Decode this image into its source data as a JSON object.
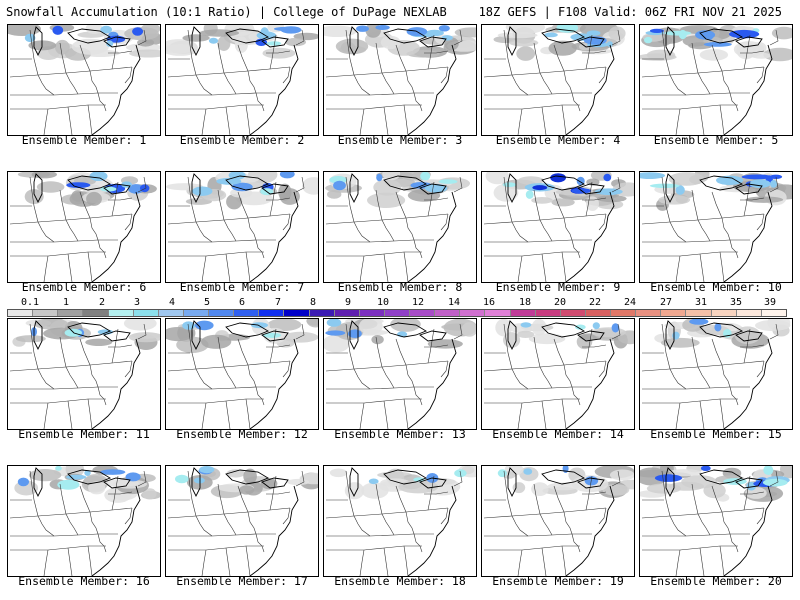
{
  "header": {
    "left": "Snowfall Accumulation (10:1 Ratio) | College of DuPage NEXLAB",
    "right": "18Z GEFS | F108 Valid: 06Z FRI NOV 21 2025"
  },
  "colorbar": {
    "labels": [
      "0.1",
      "1",
      "2",
      "3",
      "4",
      "5",
      "6",
      "7",
      "8",
      "9",
      "10",
      "12",
      "14",
      "16",
      "18",
      "20",
      "22",
      "24",
      "27",
      "31",
      "35",
      "39"
    ],
    "colors": [
      "#e8e8e8",
      "#c8c8c8",
      "#a0a0a0",
      "#808080",
      "#b4f0f0",
      "#8ce0ec",
      "#a0c8f0",
      "#78aaf0",
      "#5088f0",
      "#3060f0",
      "#1030f0",
      "#0000c8",
      "#3c1cb4",
      "#6020b0",
      "#7c30c0",
      "#9040c8",
      "#a84cc8",
      "#c060c8",
      "#d070d0",
      "#e080d8",
      "#c03c98",
      "#c83c80",
      "#d04c70",
      "#d86060",
      "#e07868",
      "#e89080",
      "#f0a890",
      "#f4c0a8",
      "#f8d4c0",
      "#fce8dc",
      "#fff4ec"
    ]
  },
  "panels": [
    {
      "caption": "Ensemble Member: 1",
      "intensity": 2
    },
    {
      "caption": "Ensemble Member: 2",
      "intensity": 2
    },
    {
      "caption": "Ensemble Member: 3",
      "intensity": 2
    },
    {
      "caption": "Ensemble Member: 4",
      "intensity": 2
    },
    {
      "caption": "Ensemble Member: 5",
      "intensity": 3
    },
    {
      "caption": "Ensemble Member: 6",
      "intensity": 2
    },
    {
      "caption": "Ensemble Member: 7",
      "intensity": 2
    },
    {
      "caption": "Ensemble Member: 8",
      "intensity": 2
    },
    {
      "caption": "Ensemble Member: 9",
      "intensity": 3
    },
    {
      "caption": "Ensemble Member: 10",
      "intensity": 3
    },
    {
      "caption": "Ensemble Member: 11",
      "intensity": 1
    },
    {
      "caption": "Ensemble Member: 12",
      "intensity": 1
    },
    {
      "caption": "Ensemble Member: 13",
      "intensity": 1
    },
    {
      "caption": "Ensemble Member: 14",
      "intensity": 1
    },
    {
      "caption": "Ensemble Member: 15",
      "intensity": 1
    },
    {
      "caption": "Ensemble Member: 16",
      "intensity": 2
    },
    {
      "caption": "Ensemble Member: 17",
      "intensity": 1
    },
    {
      "caption": "Ensemble Member: 18",
      "intensity": 1
    },
    {
      "caption": "Ensemble Member: 19",
      "intensity": 1
    },
    {
      "caption": "Ensemble Member: 20",
      "intensity": 3
    }
  ]
}
